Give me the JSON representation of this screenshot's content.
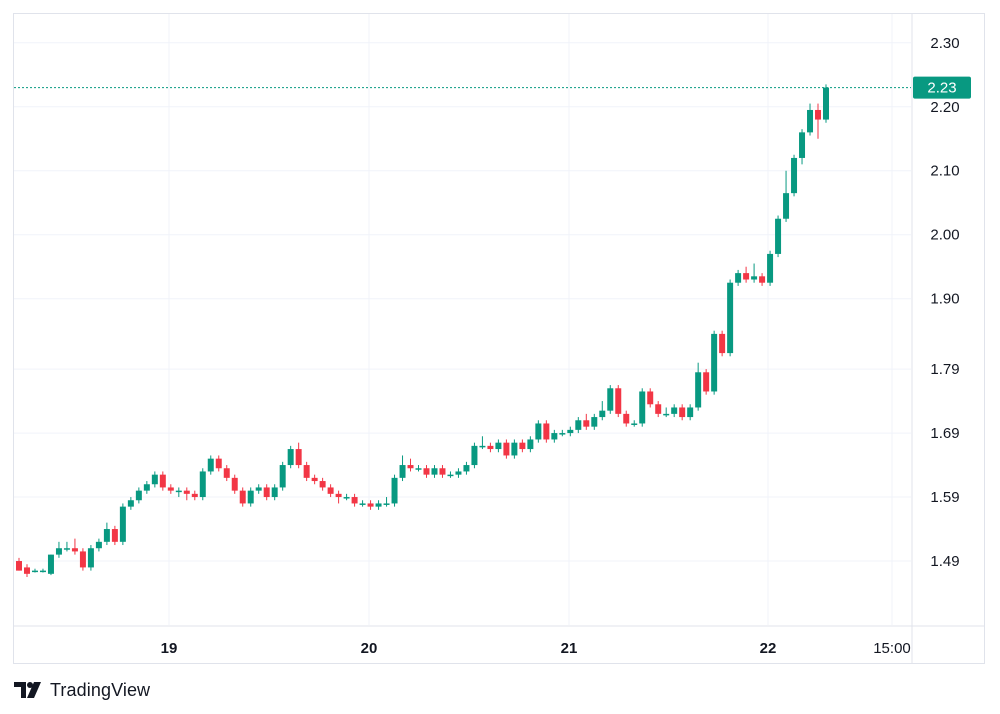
{
  "chart_data": {
    "type": "candlestick",
    "y_ticks": [
      "2.30",
      "2.20",
      "2.10",
      "2.00",
      "1.90",
      "1.79",
      "1.69",
      "1.59",
      "1.49"
    ],
    "y_tick_values": [
      2.3,
      2.2,
      2.1,
      2.0,
      1.9,
      1.79,
      1.69,
      1.59,
      1.49
    ],
    "ylim": [
      1.39,
      2.345
    ],
    "x_ticks": [
      {
        "label": "19",
        "bold": true
      },
      {
        "label": "20",
        "bold": true
      },
      {
        "label": "21",
        "bold": true
      },
      {
        "label": "22",
        "bold": true
      },
      {
        "label": "15:00",
        "bold": false
      }
    ],
    "last_price": 2.23,
    "last_price_label": "2.23",
    "up_color": "#089981",
    "down_color": "#f23645",
    "candles": [
      [
        1.49,
        1.475,
        1.495,
        1.475
      ],
      [
        1.48,
        1.47,
        1.485,
        1.465
      ],
      [
        1.475,
        1.475,
        1.478,
        1.472
      ],
      [
        1.475,
        1.475,
        1.478,
        1.472
      ],
      [
        1.47,
        1.5,
        1.5,
        1.468
      ],
      [
        1.5,
        1.51,
        1.52,
        1.495
      ],
      [
        1.51,
        1.51,
        1.52,
        1.505
      ],
      [
        1.51,
        1.505,
        1.525,
        1.5
      ],
      [
        1.505,
        1.48,
        1.51,
        1.475
      ],
      [
        1.48,
        1.51,
        1.515,
        1.475
      ],
      [
        1.51,
        1.52,
        1.525,
        1.505
      ],
      [
        1.52,
        1.54,
        1.55,
        1.515
      ],
      [
        1.54,
        1.52,
        1.545,
        1.515
      ],
      [
        1.52,
        1.575,
        1.58,
        1.515
      ],
      [
        1.575,
        1.585,
        1.59,
        1.57
      ],
      [
        1.585,
        1.6,
        1.605,
        1.58
      ],
      [
        1.6,
        1.61,
        1.615,
        1.595
      ],
      [
        1.61,
        1.625,
        1.63,
        1.605
      ],
      [
        1.625,
        1.605,
        1.63,
        1.6
      ],
      [
        1.605,
        1.6,
        1.61,
        1.595
      ],
      [
        1.6,
        1.6,
        1.605,
        1.59
      ],
      [
        1.6,
        1.595,
        1.605,
        1.585
      ],
      [
        1.595,
        1.59,
        1.6,
        1.585
      ],
      [
        1.59,
        1.63,
        1.635,
        1.585
      ],
      [
        1.63,
        1.65,
        1.655,
        1.625
      ],
      [
        1.65,
        1.635,
        1.655,
        1.63
      ],
      [
        1.635,
        1.62,
        1.64,
        1.615
      ],
      [
        1.62,
        1.6,
        1.625,
        1.595
      ],
      [
        1.6,
        1.58,
        1.605,
        1.575
      ],
      [
        1.58,
        1.6,
        1.605,
        1.575
      ],
      [
        1.6,
        1.605,
        1.61,
        1.595
      ],
      [
        1.605,
        1.59,
        1.61,
        1.585
      ],
      [
        1.59,
        1.605,
        1.61,
        1.585
      ],
      [
        1.605,
        1.64,
        1.645,
        1.6
      ],
      [
        1.64,
        1.665,
        1.67,
        1.635
      ],
      [
        1.665,
        1.64,
        1.675,
        1.635
      ],
      [
        1.64,
        1.62,
        1.645,
        1.615
      ],
      [
        1.62,
        1.615,
        1.625,
        1.61
      ],
      [
        1.615,
        1.605,
        1.62,
        1.6
      ],
      [
        1.605,
        1.595,
        1.61,
        1.59
      ],
      [
        1.595,
        1.59,
        1.6,
        1.58
      ],
      [
        1.59,
        1.59,
        1.595,
        1.585
      ],
      [
        1.59,
        1.58,
        1.595,
        1.575
      ],
      [
        1.58,
        1.58,
        1.585,
        1.575
      ],
      [
        1.58,
        1.575,
        1.585,
        1.57
      ],
      [
        1.575,
        1.58,
        1.585,
        1.57
      ],
      [
        1.58,
        1.58,
        1.59,
        1.575
      ],
      [
        1.58,
        1.62,
        1.625,
        1.575
      ],
      [
        1.62,
        1.64,
        1.655,
        1.615
      ],
      [
        1.64,
        1.635,
        1.65,
        1.63
      ],
      [
        1.635,
        1.635,
        1.64,
        1.63
      ],
      [
        1.635,
        1.625,
        1.64,
        1.62
      ],
      [
        1.625,
        1.635,
        1.64,
        1.62
      ],
      [
        1.635,
        1.625,
        1.64,
        1.62
      ],
      [
        1.625,
        1.625,
        1.63,
        1.62
      ],
      [
        1.625,
        1.63,
        1.635,
        1.62
      ],
      [
        1.63,
        1.64,
        1.645,
        1.625
      ],
      [
        1.64,
        1.67,
        1.675,
        1.635
      ],
      [
        1.67,
        1.67,
        1.685,
        1.665
      ],
      [
        1.67,
        1.665,
        1.675,
        1.66
      ],
      [
        1.665,
        1.675,
        1.68,
        1.66
      ],
      [
        1.675,
        1.655,
        1.68,
        1.65
      ],
      [
        1.655,
        1.675,
        1.68,
        1.65
      ],
      [
        1.675,
        1.665,
        1.68,
        1.66
      ],
      [
        1.665,
        1.68,
        1.685,
        1.66
      ],
      [
        1.68,
        1.705,
        1.71,
        1.675
      ],
      [
        1.705,
        1.68,
        1.71,
        1.675
      ],
      [
        1.68,
        1.69,
        1.695,
        1.675
      ],
      [
        1.69,
        1.69,
        1.695,
        1.685
      ],
      [
        1.69,
        1.695,
        1.7,
        1.685
      ],
      [
        1.695,
        1.71,
        1.715,
        1.69
      ],
      [
        1.71,
        1.7,
        1.72,
        1.695
      ],
      [
        1.7,
        1.715,
        1.72,
        1.695
      ],
      [
        1.715,
        1.725,
        1.74,
        1.71
      ],
      [
        1.725,
        1.76,
        1.765,
        1.72
      ],
      [
        1.76,
        1.72,
        1.765,
        1.715
      ],
      [
        1.72,
        1.705,
        1.725,
        1.7
      ],
      [
        1.705,
        1.705,
        1.71,
        1.7
      ],
      [
        1.705,
        1.755,
        1.76,
        1.7
      ],
      [
        1.755,
        1.735,
        1.76,
        1.73
      ],
      [
        1.735,
        1.72,
        1.74,
        1.715
      ],
      [
        1.72,
        1.72,
        1.73,
        1.715
      ],
      [
        1.72,
        1.73,
        1.735,
        1.715
      ],
      [
        1.73,
        1.715,
        1.735,
        1.71
      ],
      [
        1.715,
        1.73,
        1.735,
        1.71
      ],
      [
        1.73,
        1.785,
        1.8,
        1.725
      ],
      [
        1.785,
        1.755,
        1.79,
        1.75
      ],
      [
        1.755,
        1.845,
        1.85,
        1.75
      ],
      [
        1.845,
        1.815,
        1.85,
        1.81
      ],
      [
        1.815,
        1.925,
        1.93,
        1.81
      ],
      [
        1.925,
        1.94,
        1.945,
        1.92
      ],
      [
        1.94,
        1.93,
        1.95,
        1.925
      ],
      [
        1.93,
        1.935,
        1.955,
        1.925
      ],
      [
        1.935,
        1.925,
        1.94,
        1.92
      ],
      [
        1.925,
        1.97,
        1.975,
        1.92
      ],
      [
        1.97,
        2.025,
        2.03,
        1.965
      ],
      [
        2.025,
        2.065,
        2.1,
        2.02
      ],
      [
        2.065,
        2.12,
        2.125,
        2.06
      ],
      [
        2.12,
        2.16,
        2.165,
        2.11
      ],
      [
        2.16,
        2.195,
        2.205,
        2.155
      ],
      [
        2.195,
        2.18,
        2.205,
        2.15
      ],
      [
        2.18,
        2.23,
        2.235,
        2.175
      ]
    ]
  },
  "brand": {
    "name": "TradingView"
  }
}
